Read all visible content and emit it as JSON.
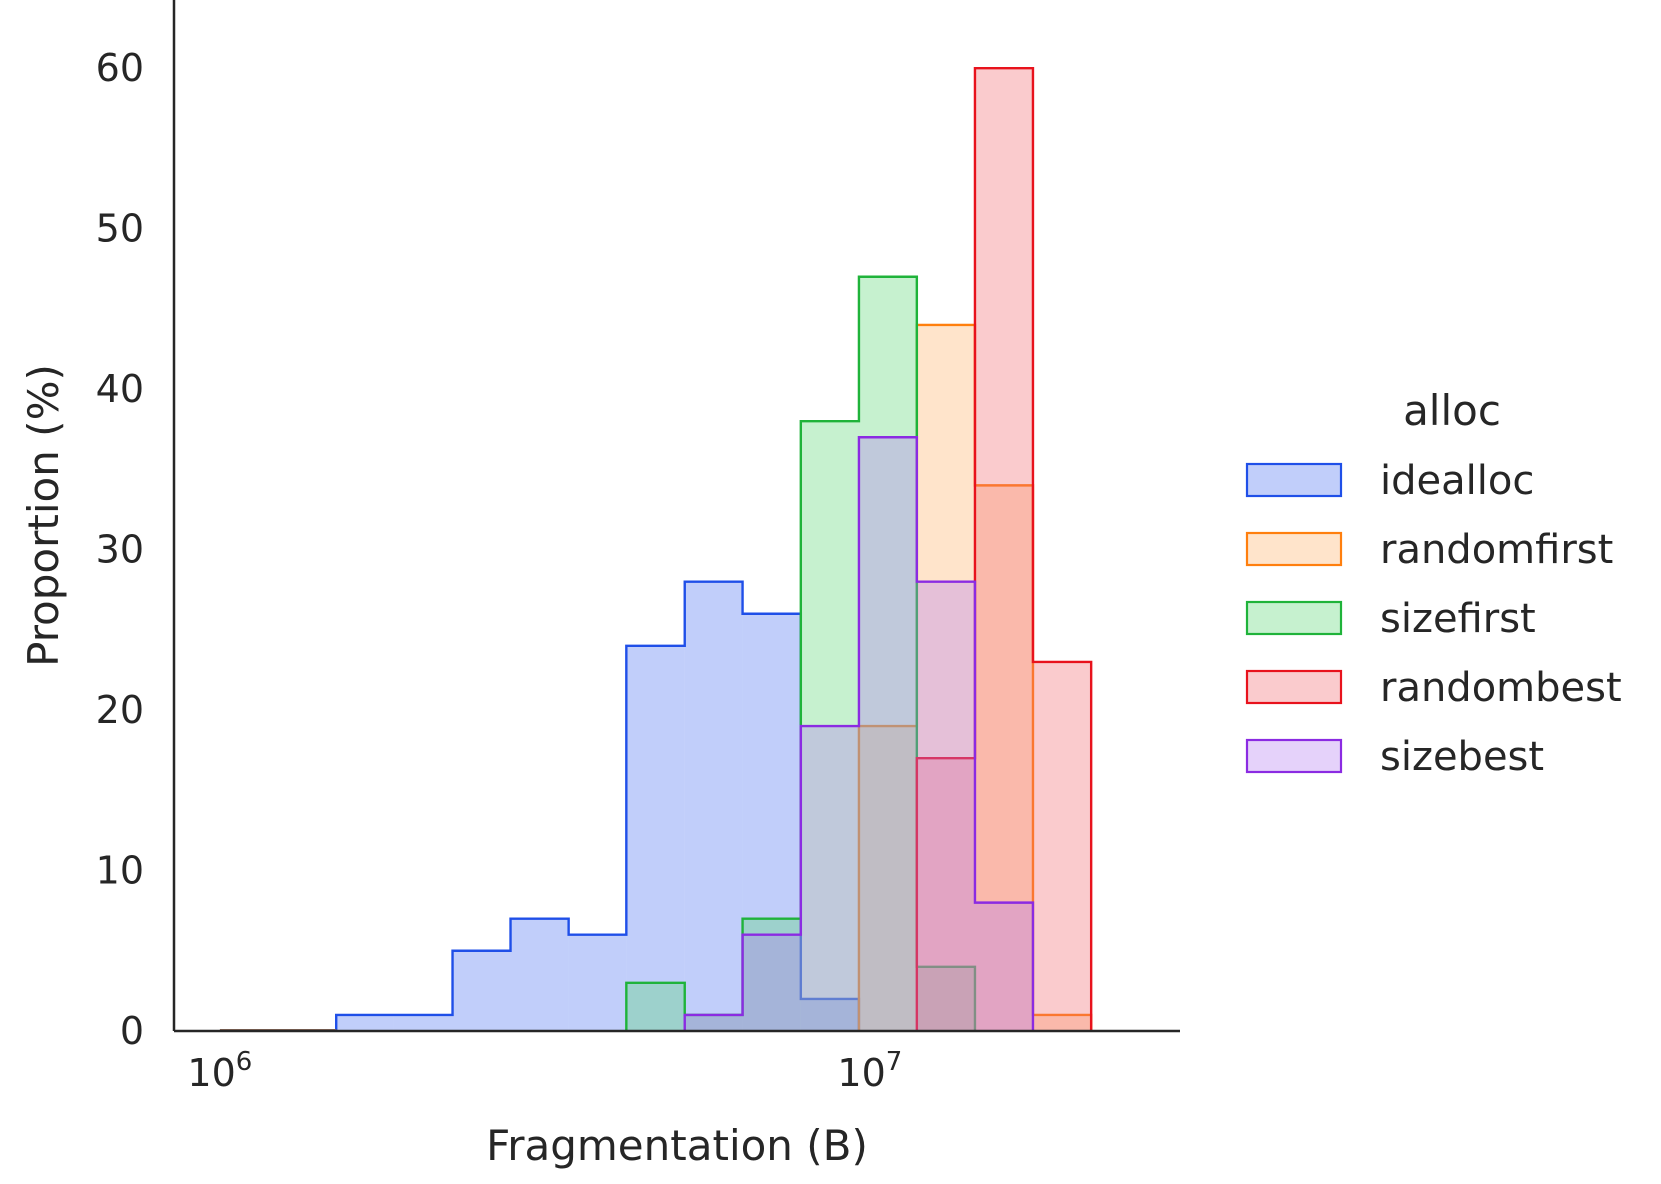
{
  "chart_data": {
    "type": "bar",
    "subtype": "step histogram (overlaid, filled)",
    "xlabel": "Fragmentation (B)",
    "ylabel": "Proportion (%)",
    "xscale": "log",
    "xlim": [
      850000,
      30000000
    ],
    "ylim": [
      0,
      63
    ],
    "xticks": [
      {
        "value": 1000000,
        "base": "10",
        "exp": "6"
      },
      {
        "value": 10000000,
        "base": "10",
        "exp": "7"
      }
    ],
    "yticks": [
      0,
      10,
      20,
      30,
      40,
      50,
      60
    ],
    "grid": false,
    "legend": {
      "title": "alloc",
      "placement": "outside right"
    },
    "bin_edges": [
      1000000,
      1230000,
      1510000,
      1850000,
      2280000,
      2800000,
      3440000,
      4220000,
      5190000,
      6370000,
      7830000,
      9620000,
      11810000,
      14510000,
      17820000,
      21900000,
      26900000
    ],
    "series": [
      {
        "name": "idealloc",
        "color": "#1f4fe8",
        "fill": "#4c72f2",
        "values": [
          0,
          0,
          1,
          1,
          5,
          7,
          6,
          24,
          28,
          26,
          2,
          0,
          0,
          0,
          0,
          0
        ]
      },
      {
        "name": "randomfirst",
        "color": "#ff7f0e",
        "fill": "#ffb26b",
        "values": [
          0,
          0,
          0,
          0,
          0,
          0,
          0,
          0,
          0,
          0,
          0,
          19,
          44,
          34,
          1,
          0
        ]
      },
      {
        "name": "sizefirst",
        "color": "#1fb33a",
        "fill": "#5cd675",
        "values": [
          0,
          0,
          0,
          0,
          0,
          0,
          0,
          3,
          1,
          7,
          38,
          47,
          4,
          0,
          0,
          0
        ]
      },
      {
        "name": "randombest",
        "color": "#e8121c",
        "fill": "#f06b71",
        "values": [
          0,
          0,
          0,
          0,
          0,
          0,
          0,
          0,
          0,
          0,
          0,
          0,
          17,
          60,
          23,
          0
        ]
      },
      {
        "name": "sizebest",
        "color": "#8b2be2",
        "fill": "#b47ff0",
        "values": [
          0,
          0,
          0,
          0,
          0,
          0,
          0,
          0,
          1,
          6,
          19,
          37,
          28,
          8,
          0,
          0
        ]
      }
    ]
  }
}
